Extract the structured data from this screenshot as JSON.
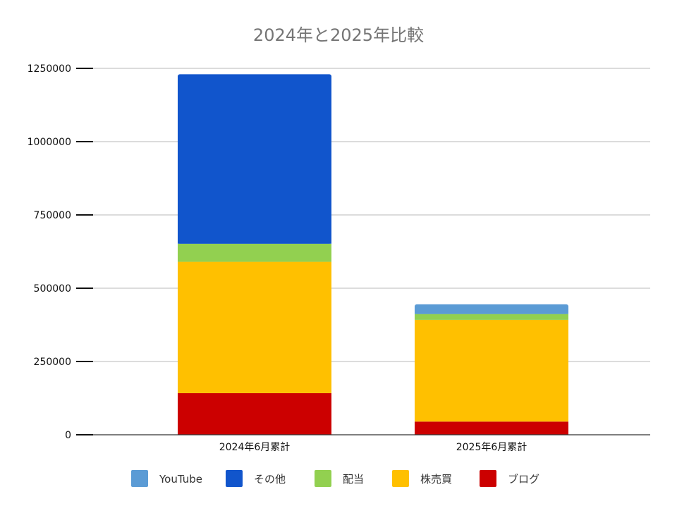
{
  "chart_data": {
    "type": "bar",
    "stacked": true,
    "title": "2024年と2025年比較",
    "categories": [
      "2024年6月累計",
      "2025年6月累計"
    ],
    "ylim": [
      0,
      1250000
    ],
    "yticks": [
      0,
      250000,
      500000,
      750000,
      1000000,
      1250000
    ],
    "ytick_labels": [
      "0",
      "250000",
      "500000",
      "750000",
      "1000000",
      "1250000"
    ],
    "grid": true,
    "legend_position": "bottom",
    "series": [
      {
        "name": "ブログ",
        "color": "#cc0000",
        "values": [
          142000,
          45000
        ]
      },
      {
        "name": "株売買",
        "color": "#ffc000",
        "values": [
          448000,
          347000
        ]
      },
      {
        "name": "配当",
        "color": "#92d050",
        "values": [
          62000,
          20000
        ]
      },
      {
        "name": "その他",
        "color": "#1155cc",
        "values": [
          578000,
          0
        ]
      },
      {
        "name": "YouTube",
        "color": "#5b9bd5",
        "values": [
          0,
          33000
        ]
      }
    ],
    "legend_order": [
      "YouTube",
      "その他",
      "配当",
      "株売買",
      "ブログ"
    ]
  }
}
